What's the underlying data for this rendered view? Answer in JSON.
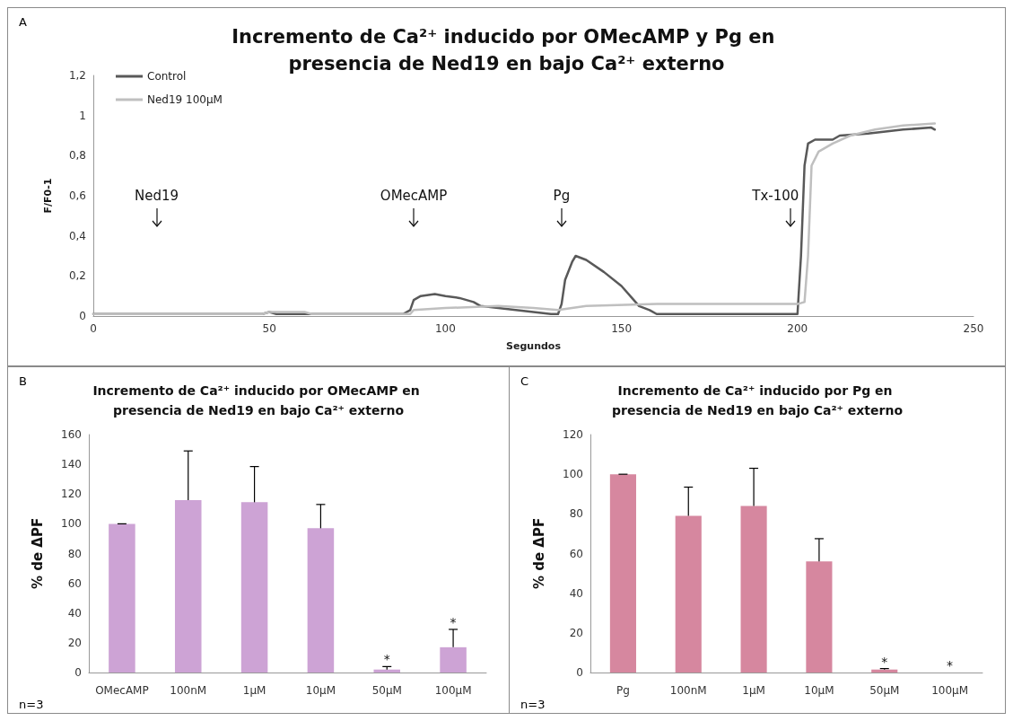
{
  "chart_data": [
    {
      "type": "line",
      "title": "Incremento de Ca²⁺ inducido por OMecAMP y Pg en presencia de Ned19 en bajo Ca²⁺ externo",
      "xlabel": "Segundos",
      "ylabel": "F/F0-1",
      "xlim": [
        0,
        250
      ],
      "xticks": [
        0,
        50,
        100,
        150,
        200,
        250
      ],
      "ylim": [
        0,
        1.2
      ],
      "yticks": [
        0,
        {
          "value": 0.2,
          "label": "0,2"
        },
        {
          "value": 0.4,
          "label": "0,4"
        },
        {
          "value": 0.6,
          "label": "0,6"
        },
        {
          "value": 0.8,
          "label": "0,8"
        },
        1,
        {
          "value": 1.2,
          "label": "1,2"
        }
      ],
      "legend": "top left",
      "marker": "none",
      "line_style": "solid",
      "series": [
        {
          "name": "Control",
          "color": "#595959",
          "x": [
            0,
            20,
            48,
            50,
            52,
            70,
            88,
            90,
            91,
            93,
            97,
            100,
            104,
            108,
            110,
            115,
            120,
            125,
            130,
            132,
            133,
            134,
            136,
            137,
            140,
            145,
            150,
            153,
            155,
            158,
            160,
            170,
            190,
            200,
            201,
            202,
            203,
            205,
            210,
            212,
            220,
            230,
            238,
            239
          ],
          "values": [
            0.01,
            0.01,
            0.01,
            0.02,
            0.01,
            0.01,
            0.01,
            0.03,
            0.08,
            0.1,
            0.11,
            0.1,
            0.09,
            0.07,
            0.05,
            0.04,
            0.03,
            0.02,
            0.01,
            0.01,
            0.06,
            0.18,
            0.27,
            0.3,
            0.28,
            0.22,
            0.15,
            0.09,
            0.05,
            0.03,
            0.01,
            0.01,
            0.01,
            0.01,
            0.3,
            0.75,
            0.86,
            0.88,
            0.88,
            0.9,
            0.91,
            0.93,
            0.94,
            0.93
          ]
        },
        {
          "name": "Ned19 100µM",
          "color": "#bfbfbf",
          "x": [
            0,
            20,
            48,
            50,
            60,
            62,
            90,
            91,
            100,
            115,
            125,
            132,
            140,
            160,
            180,
            200,
            202,
            203,
            204,
            206,
            210,
            215,
            222,
            230,
            239
          ],
          "values": [
            0.01,
            0.01,
            0.01,
            0.02,
            0.02,
            0.01,
            0.01,
            0.03,
            0.04,
            0.05,
            0.04,
            0.03,
            0.05,
            0.06,
            0.06,
            0.06,
            0.07,
            0.3,
            0.75,
            0.82,
            0.86,
            0.9,
            0.93,
            0.95,
            0.96
          ]
        }
      ],
      "annotations": [
        "A",
        "Ned19",
        "OMecAMP",
        "Pg",
        "Tx-100"
      ]
    },
    {
      "type": "bar",
      "title": "Incremento de Ca²⁺ inducido por OMecAMP en presencia de Ned19 en bajo Ca²⁺ externo",
      "ylabel": "% de ΔPF",
      "categories": [
        "OMecAMP",
        "100nM",
        "1µM",
        "10µM",
        "50µM",
        "100µM"
      ],
      "values": [
        100,
        116,
        114.5,
        97,
        2,
        17
      ],
      "color": "#cda3d5",
      "errors": [
        [
          100,
          100
        ],
        [
          116,
          149
        ],
        [
          114.5,
          138.5
        ],
        [
          97,
          113
        ],
        [
          2,
          4
        ],
        [
          17,
          29
        ]
      ],
      "ylim": [
        0,
        160
      ],
      "yticks": [
        0,
        20,
        40,
        60,
        80,
        100,
        120,
        140,
        160
      ],
      "annotations": [
        "B",
        "n=3",
        "*",
        "*"
      ]
    },
    {
      "type": "bar",
      "title": "Incremento de Ca²⁺ inducido por Pg en presencia de Ned19 en bajo Ca²⁺ externo",
      "ylabel": "% de ΔPF",
      "categories": [
        "Pg",
        "100nM",
        "1µM",
        "10µM",
        "50µM",
        "100µM"
      ],
      "values": [
        100,
        79,
        84,
        56,
        1.5,
        0
      ],
      "color": "#d6879f",
      "errors": [
        [
          100,
          100
        ],
        [
          79,
          93.5
        ],
        [
          84,
          103
        ],
        [
          56,
          67.5
        ],
        [
          1.5,
          2
        ],
        null
      ],
      "ylim": [
        0,
        120
      ],
      "yticks": [
        0,
        20,
        40,
        60,
        80,
        100,
        120
      ],
      "annotations": [
        "C",
        "n=3",
        "*",
        "*"
      ]
    }
  ]
}
